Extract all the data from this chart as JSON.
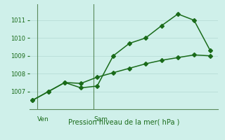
{
  "line1_x": [
    0,
    1,
    2,
    3,
    4,
    5,
    6,
    7,
    8,
    9,
    10,
    11
  ],
  "line1_y": [
    1006.5,
    1007.0,
    1007.5,
    1007.2,
    1007.3,
    1009.0,
    1009.7,
    1010.0,
    1010.7,
    1011.35,
    1011.0,
    1009.3
  ],
  "line2_x": [
    0,
    1,
    2,
    3,
    4,
    5,
    6,
    7,
    8,
    9,
    10,
    11
  ],
  "line2_y": [
    1006.5,
    1007.0,
    1007.5,
    1007.45,
    1007.8,
    1008.05,
    1008.3,
    1008.55,
    1008.75,
    1008.9,
    1009.05,
    1009.0
  ],
  "line_color": "#1a6b1a",
  "bg_color": "#cff0ea",
  "grid_color": "#b8ddd8",
  "axis_color": "#5a8a5a",
  "xlabel": "Pression niveau de la mer( hPa )",
  "xlabel_color": "#1a6b1a",
  "xtick_labels": [
    "Ven",
    "Sam"
  ],
  "ven_x": 0.3,
  "sam_x": 3.8,
  "ytick_values": [
    1007,
    1008,
    1009,
    1010,
    1011
  ],
  "ylim": [
    1006.0,
    1011.9
  ],
  "xlim": [
    -0.2,
    11.5
  ],
  "tick_color": "#1a6b1a",
  "marker": "D",
  "markersize": 3.0,
  "linewidth": 1.1,
  "figsize": [
    3.2,
    2.0
  ],
  "dpi": 100
}
